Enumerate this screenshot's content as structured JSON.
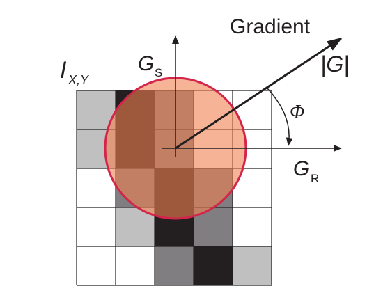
{
  "labels": {
    "gradient": "Gradient",
    "magnitude": "|G|",
    "image_main": "I",
    "image_sub": "X,Y",
    "gs_main": "G",
    "gs_sub": "S",
    "gr_main": "G",
    "gr_sub": "R",
    "phi": "Φ"
  },
  "grid": {
    "rows": 5,
    "cols": 5,
    "cell_colors": [
      [
        "#c0c0c0",
        "#231f20",
        "#807e80",
        "#ffffff",
        "#ffffff"
      ],
      [
        "#c0c0c0",
        "#231f20",
        "#807e80",
        "#ffffff",
        "#ffffff"
      ],
      [
        "#ffffff",
        "#807e80",
        "#231f20",
        "#807e80",
        "#ffffff"
      ],
      [
        "#ffffff",
        "#c0c0c0",
        "#231f20",
        "#807e80",
        "#ffffff"
      ],
      [
        "#ffffff",
        "#ffffff",
        "#807e80",
        "#231f20",
        "#c0c0c0"
      ]
    ],
    "line_color": "#231f20"
  },
  "circle": {
    "fill_color": "#f08050",
    "fill_opacity": 0.6,
    "stroke_color": "#d4244a"
  },
  "colors": {
    "axis": "#231f20",
    "text": "#231f20"
  }
}
